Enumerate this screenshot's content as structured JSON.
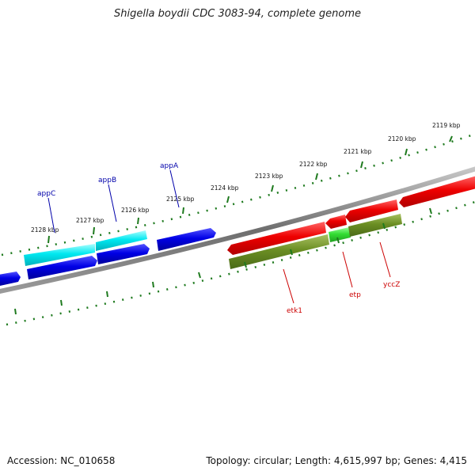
{
  "title": "Shigella boydii CDC 3083-94, complete genome",
  "footer": {
    "accession": "Accession: NC_010658",
    "summary": "Topology: circular; Length: 4,615,997 bp; Genes: 4,415"
  },
  "colors": {
    "backbone": "#7a7a7a",
    "tick": "#1e7a1e",
    "forward_gene": "#0000e0",
    "forward_cds": "#00e5ee",
    "reverse_gene": "#ee0000",
    "reverse_cds": "#6b8e23",
    "reverse_cds_alt": "#33dd33",
    "label_forward": "#0000aa",
    "label_reverse": "#cc0000"
  },
  "scale": {
    "unit": "kbp",
    "outer_labels": [
      "2119 kbp",
      "2120 kbp",
      "2121 kbp",
      "2122 kbp",
      "2123 kbp",
      "2124 kbp",
      "2125 kbp",
      "2126 kbp",
      "2127 kbp",
      "2128 kbp"
    ]
  },
  "genes": {
    "forward": [
      {
        "name": "appC",
        "label": "appC"
      },
      {
        "name": "appB",
        "label": "appB"
      },
      {
        "name": "appA",
        "label": "appA"
      }
    ],
    "reverse": [
      {
        "name": "etk1",
        "label": "etk1"
      },
      {
        "name": "etp",
        "label": "etp"
      },
      {
        "name": "yccZ",
        "label": "yccZ"
      }
    ]
  }
}
